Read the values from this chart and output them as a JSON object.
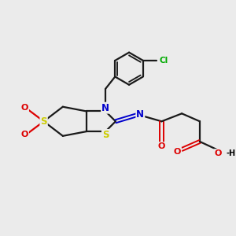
{
  "bg_color": "#ebebeb",
  "atom_colors": {
    "C": "#000000",
    "N": "#0000cc",
    "S": "#cccc00",
    "O": "#dd0000",
    "Cl": "#00aa00",
    "H": "#000000"
  },
  "bond_color": "#1a1a1a",
  "line_width": 1.6,
  "fig_bg": "#ebebeb"
}
